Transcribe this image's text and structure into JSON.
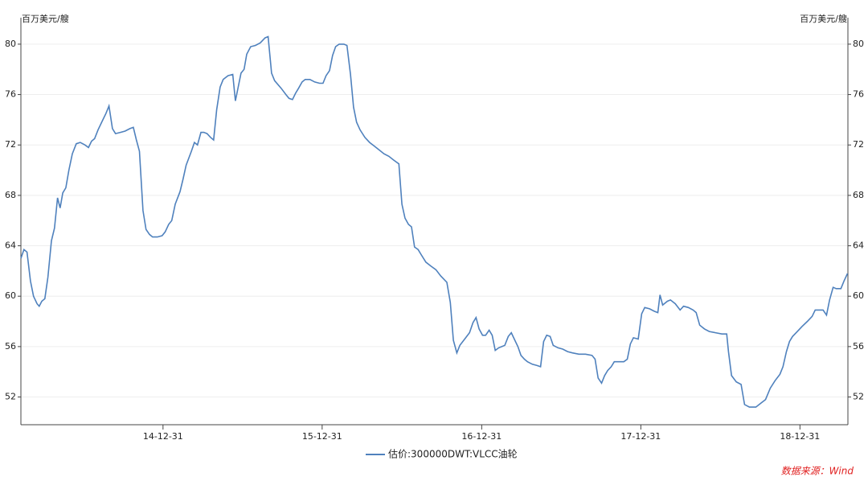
{
  "chart_data": {
    "type": "line",
    "y_label": "百万美元/艘",
    "source": "数据来源：Wind",
    "ylim": [
      49.8,
      82.1
    ],
    "yticks": [
      52,
      56,
      60,
      64,
      68,
      72,
      76,
      80
    ],
    "grid": true,
    "xlim": [
      "14-02-08",
      "19-04-20"
    ],
    "xticks": [
      "14-12-31",
      "15-12-31",
      "16-12-31",
      "17-12-31",
      "18-12-31"
    ],
    "x": [
      "14-02-08",
      "14-02-15",
      "14-02-22",
      "14-03-02",
      "14-03-09",
      "14-03-17",
      "14-03-22",
      "14-03-28",
      "14-04-04",
      "14-04-11",
      "14-04-19",
      "14-04-26",
      "14-05-03",
      "14-05-09",
      "14-05-15",
      "14-05-22",
      "14-05-29",
      "14-06-06",
      "14-06-15",
      "14-06-24",
      "14-07-05",
      "14-07-13",
      "14-07-20",
      "14-07-27",
      "14-08-04",
      "14-08-15",
      "14-08-22",
      "14-08-29",
      "14-09-06",
      "14-09-13",
      "14-09-24",
      "14-10-05",
      "14-10-16",
      "14-10-24",
      "14-10-31",
      "14-11-07",
      "14-11-15",
      "14-11-22",
      "14-11-30",
      "14-12-07",
      "14-12-18",
      "14-12-29",
      "15-01-05",
      "15-01-13",
      "15-01-20",
      "15-01-28",
      "15-02-08",
      "15-02-15",
      "15-02-22",
      "15-03-06",
      "15-03-13",
      "15-03-20",
      "15-03-28",
      "15-04-04",
      "15-04-11",
      "15-04-19",
      "15-04-26",
      "15-05-03",
      "15-05-11",
      "15-05-18",
      "15-05-29",
      "15-06-09",
      "15-06-15",
      "15-06-28",
      "15-07-05",
      "15-07-11",
      "15-07-20",
      "15-07-31",
      "15-08-11",
      "15-08-22",
      "15-08-29",
      "15-09-06",
      "15-09-13",
      "15-09-28",
      "15-10-09",
      "15-10-16",
      "15-10-24",
      "15-10-31",
      "15-11-07",
      "15-11-15",
      "15-11-22",
      "15-12-03",
      "15-12-14",
      "15-12-25",
      "16-01-02",
      "16-01-09",
      "16-01-17",
      "16-01-24",
      "16-01-31",
      "16-02-08",
      "16-02-19",
      "16-02-26",
      "16-03-05",
      "16-03-12",
      "16-03-19",
      "16-03-27",
      "16-04-07",
      "16-04-18",
      "16-04-29",
      "16-05-10",
      "16-05-21",
      "16-06-01",
      "16-06-12",
      "16-06-24",
      "16-07-01",
      "16-07-08",
      "16-07-16",
      "16-07-23",
      "16-07-30",
      "16-08-07",
      "16-08-14",
      "16-08-25",
      "16-09-05",
      "16-09-17",
      "16-09-28",
      "16-10-12",
      "16-10-20",
      "16-10-27",
      "16-11-04",
      "16-11-11",
      "16-11-22",
      "16-12-03",
      "16-12-11",
      "16-12-18",
      "16-12-25",
      "17-01-02",
      "17-01-09",
      "17-01-17",
      "17-01-24",
      "17-01-31",
      "17-02-08",
      "17-02-15",
      "17-02-22",
      "17-03-02",
      "17-03-09",
      "17-03-17",
      "17-03-24",
      "17-03-31",
      "17-04-08",
      "17-04-15",
      "17-04-26",
      "17-05-07",
      "17-05-15",
      "17-05-22",
      "17-05-29",
      "17-06-06",
      "17-06-13",
      "17-06-24",
      "17-07-05",
      "17-07-16",
      "17-07-27",
      "17-08-11",
      "17-08-26",
      "17-09-10",
      "17-09-17",
      "17-09-24",
      "17-10-02",
      "17-10-09",
      "17-10-16",
      "17-10-24",
      "17-10-31",
      "17-11-11",
      "17-11-22",
      "17-11-30",
      "17-12-07",
      "17-12-14",
      "17-12-25",
      "18-01-02",
      "18-01-09",
      "18-01-20",
      "18-01-31",
      "18-02-08",
      "18-02-13",
      "18-02-19",
      "18-03-02",
      "18-03-09",
      "18-03-20",
      "18-03-31",
      "18-04-08",
      "18-04-19",
      "18-04-30",
      "18-05-07",
      "18-05-15",
      "18-05-26",
      "18-06-06",
      "18-06-20",
      "18-07-05",
      "18-07-16",
      "18-07-20",
      "18-07-27",
      "18-08-07",
      "18-08-18",
      "18-08-26",
      "18-09-06",
      "18-09-21",
      "18-10-02",
      "18-10-13",
      "18-10-24",
      "18-11-04",
      "18-11-15",
      "18-11-22",
      "18-11-30",
      "18-12-07",
      "18-12-14",
      "18-12-25",
      "19-01-05",
      "19-01-17",
      "19-01-28",
      "19-02-04",
      "19-02-15",
      "19-02-22",
      "19-03-02",
      "19-03-09",
      "19-03-17",
      "19-03-24",
      "19-04-04",
      "19-04-11",
      "19-04-19"
    ],
    "series": [
      {
        "name": "估价:300000DWT:VLCC油轮",
        "color": "#4f81bd",
        "values": [
          63.0,
          63.7,
          63.5,
          61.2,
          60.0,
          59.4,
          59.2,
          59.6,
          59.8,
          61.5,
          64.4,
          65.4,
          67.8,
          67.0,
          68.2,
          68.6,
          70.0,
          71.3,
          72.1,
          72.2,
          72.0,
          71.8,
          72.3,
          72.5,
          73.2,
          74.0,
          74.5,
          75.1,
          73.3,
          72.9,
          73.0,
          73.1,
          73.3,
          73.4,
          72.4,
          71.5,
          66.8,
          65.3,
          64.9,
          64.7,
          64.7,
          64.8,
          65.1,
          65.7,
          66.0,
          67.3,
          68.3,
          69.3,
          70.4,
          71.5,
          72.2,
          72.0,
          73.0,
          73.0,
          72.9,
          72.6,
          72.4,
          74.8,
          76.6,
          77.2,
          77.5,
          77.6,
          75.5,
          77.7,
          78.0,
          79.2,
          79.8,
          79.9,
          80.1,
          80.5,
          80.6,
          77.7,
          77.1,
          76.5,
          76.0,
          75.7,
          75.6,
          76.1,
          76.5,
          77.0,
          77.2,
          77.2,
          77.0,
          76.9,
          76.9,
          77.5,
          77.9,
          79.1,
          79.8,
          80.0,
          80.0,
          79.9,
          77.6,
          75.0,
          73.8,
          73.2,
          72.6,
          72.2,
          71.9,
          71.6,
          71.3,
          71.1,
          70.8,
          70.5,
          67.3,
          66.2,
          65.7,
          65.5,
          63.9,
          63.7,
          63.3,
          62.7,
          62.4,
          62.1,
          61.6,
          61.1,
          59.5,
          56.5,
          55.5,
          56.1,
          56.6,
          57.1,
          57.9,
          58.3,
          57.4,
          56.9,
          56.9,
          57.3,
          56.9,
          55.7,
          55.9,
          56.0,
          56.1,
          56.8,
          57.1,
          56.5,
          56.0,
          55.3,
          55.0,
          54.8,
          54.6,
          54.5,
          54.4,
          56.4,
          56.9,
          56.8,
          56.1,
          55.9,
          55.8,
          55.6,
          55.5,
          55.4,
          55.4,
          55.3,
          55.0,
          53.5,
          53.1,
          53.7,
          54.1,
          54.4,
          54.8,
          54.8,
          54.8,
          55.0,
          56.2,
          56.7,
          56.6,
          58.6,
          59.1,
          59.0,
          58.8,
          58.7,
          60.1,
          59.3,
          59.6,
          59.7,
          59.4,
          58.9,
          59.2,
          59.1,
          58.9,
          58.7,
          57.7,
          57.4,
          57.2,
          57.1,
          57.0,
          57.0,
          55.6,
          53.7,
          53.2,
          53.0,
          51.4,
          51.2,
          51.2,
          51.5,
          51.8,
          52.7,
          53.3,
          53.8,
          54.4,
          55.6,
          56.4,
          56.8,
          57.2,
          57.6,
          58.0,
          58.4,
          58.9,
          58.9,
          58.9,
          58.5,
          59.7,
          60.7,
          60.6,
          60.6,
          61.2,
          61.8
        ]
      }
    ]
  }
}
